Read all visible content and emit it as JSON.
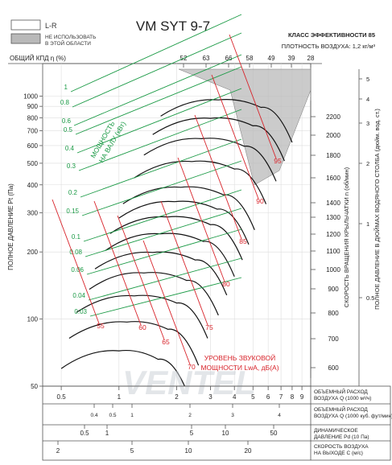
{
  "title": "VM SYT 9-7",
  "efficiency_class": "КЛАСС ЭФФЕКТИВНОСТИ 85",
  "air_density": "ПЛОТНОСТЬ ВОЗДУХА: 1,2 кг/м³",
  "legend": {
    "lr": "L-R",
    "gray_line1": "НЕ ИСПОЛЬЗОВАТЬ",
    "gray_line2": "В ЭТОЙ ОБЛАСТИ"
  },
  "efficiency_label": "ОБЩИЙ КПД η (%)",
  "efficiency_ticks": [
    "52",
    "63",
    "66",
    "58",
    "49",
    "39",
    "28"
  ],
  "y_left_label": "ПОЛНОЕ ДАВЛЕНИЕ Pt (Па)",
  "y_left_ticks": [
    "1000",
    "900",
    "800",
    "700",
    "600",
    "500",
    "400",
    "300",
    "200",
    "100",
    "50"
  ],
  "rpm_label": "СКОРОСТЬ ВРАЩЕНИЯ КРЫЛЬЧАТКИ n (об/мин)",
  "rpm_ticks": [
    "2200",
    "2000",
    "1800",
    "1600",
    "1400",
    "1300",
    "1200",
    "1100",
    "1000",
    "900",
    "800",
    "700",
    "600"
  ],
  "y_right_label": "ПОЛНОЕ ДАВЛЕНИЕ В ДЮЙМАХ ВОДЯНОГО СТОЛБА (дюйм. вод. ст.)",
  "y_right_ticks": [
    "5",
    "4",
    "3",
    "2",
    "1",
    "0.5"
  ],
  "power_label_line1": "МОЩНОСТЬ",
  "power_label_line2": "НА ВАЛУ (кВт)",
  "power_ticks": [
    "1",
    "0.8",
    "0.6",
    "0.5",
    "0.4",
    "0.3",
    "0.2",
    "0.15",
    "0.1",
    "0.08",
    "0.06",
    "0.04",
    "0.03"
  ],
  "sound_label_line1": "УРОВЕНЬ ЗВУКОВОЙ",
  "sound_label_line2": "МОЩНОСТИ LwA, дБ(А)",
  "sound_ticks": [
    "95",
    "90",
    "85",
    "80",
    "75",
    "70",
    "65",
    "60",
    "55"
  ],
  "watermark": "VENTEL",
  "axes": [
    {
      "label1": "ОБЪЕМНЫЙ РАСХОД",
      "label2": "ВОЗДУХА Q (1000 м³/ч)",
      "ticks": [
        "0.5",
        "1",
        "2",
        "3",
        "4",
        "5",
        "6",
        "7",
        "8",
        "9"
      ]
    },
    {
      "label1": "ОБЪЕМНЫЙ РАСХОД",
      "label2": "ВОЗДУХА Q (1000 куб. фут/мин)",
      "ticks": [
        "0.4",
        "0.5",
        "1",
        "2",
        "3",
        "4"
      ]
    },
    {
      "label1": "ДИНАМИЧЕСКОЕ",
      "label2": "ДАВЛЕНИЕ Pd (10 Па)",
      "ticks": [
        "0.5",
        "1",
        "5",
        "10",
        "50"
      ]
    },
    {
      "label1": "СКОРОСТЬ ВОЗДУХА",
      "label2": "НА ВЫХОДЕ С (м/с)",
      "ticks": [
        "2",
        "5",
        "10",
        "20"
      ]
    }
  ],
  "chart_data": {
    "type": "line",
    "title": "VM SYT 9-7",
    "x_axis": "ОБЪЕМНЫЙ РАСХОД ВОЗДУХА Q (1000 м³/ч)",
    "y_axis": "ПОЛНОЕ ДАВЛЕНИЕ Pt (Па)",
    "x_scale": "log",
    "y_scale": "log",
    "xlim": [
      0.4,
      10
    ],
    "ylim": [
      50,
      1400
    ],
    "rpm_curves": [
      {
        "rpm": 600,
        "points": [
          [
            0.5,
            60
          ],
          [
            1.0,
            72
          ],
          [
            1.6,
            66
          ],
          [
            2.2,
            50
          ]
        ]
      },
      {
        "rpm": 700,
        "points": [
          [
            0.55,
            82
          ],
          [
            1.1,
            97
          ],
          [
            1.8,
            90
          ],
          [
            2.6,
            62
          ]
        ]
      },
      {
        "rpm": 800,
        "points": [
          [
            0.6,
            107
          ],
          [
            1.2,
            127
          ],
          [
            2.0,
            118
          ],
          [
            2.9,
            82
          ]
        ]
      },
      {
        "rpm": 900,
        "points": [
          [
            0.7,
            136
          ],
          [
            1.35,
            161
          ],
          [
            2.25,
            149
          ],
          [
            3.3,
            104
          ]
        ]
      },
      {
        "rpm": 1000,
        "points": [
          [
            0.75,
            168
          ],
          [
            1.5,
            199
          ],
          [
            2.5,
            184
          ],
          [
            3.65,
            128
          ]
        ]
      },
      {
        "rpm": 1100,
        "points": [
          [
            0.85,
            203
          ],
          [
            1.65,
            241
          ],
          [
            2.75,
            223
          ],
          [
            4.0,
            155
          ]
        ]
      },
      {
        "rpm": 1200,
        "points": [
          [
            0.9,
            242
          ],
          [
            1.8,
            287
          ],
          [
            3.0,
            265
          ],
          [
            4.4,
            184
          ]
        ]
      },
      {
        "rpm": 1300,
        "points": [
          [
            1.0,
            284
          ],
          [
            1.95,
            336
          ],
          [
            3.25,
            311
          ],
          [
            4.75,
            216
          ]
        ]
      },
      {
        "rpm": 1400,
        "points": [
          [
            1.05,
            329
          ],
          [
            2.1,
            390
          ],
          [
            3.5,
            361
          ],
          [
            5.1,
            251
          ]
        ]
      },
      {
        "rpm": 1600,
        "points": [
          [
            1.2,
            430
          ],
          [
            2.4,
            509
          ],
          [
            4.0,
            471
          ],
          [
            5.85,
            328
          ]
        ]
      },
      {
        "rpm": 1800,
        "points": [
          [
            1.35,
            544
          ],
          [
            2.7,
            644
          ],
          [
            4.5,
            596
          ],
          [
            6.6,
            415
          ]
        ]
      },
      {
        "rpm": 2000,
        "points": [
          [
            1.5,
            672
          ],
          [
            3.0,
            795
          ],
          [
            5.0,
            736
          ],
          [
            7.3,
            512
          ]
        ]
      },
      {
        "rpm": 2200,
        "points": [
          [
            1.65,
            813
          ],
          [
            3.3,
            962
          ],
          [
            5.5,
            890
          ],
          [
            8.0,
            620
          ]
        ]
      }
    ],
    "efficiency_percent": [
      52,
      63,
      66,
      58,
      49,
      39,
      28
    ],
    "shaft_power_kw": [
      1,
      0.8,
      0.6,
      0.5,
      0.4,
      0.3,
      0.2,
      0.15,
      0.1,
      0.08,
      0.06,
      0.04,
      0.03
    ],
    "sound_power_dba": [
      95,
      90,
      85,
      80,
      75,
      70,
      65,
      60,
      55
    ],
    "grid": true
  }
}
